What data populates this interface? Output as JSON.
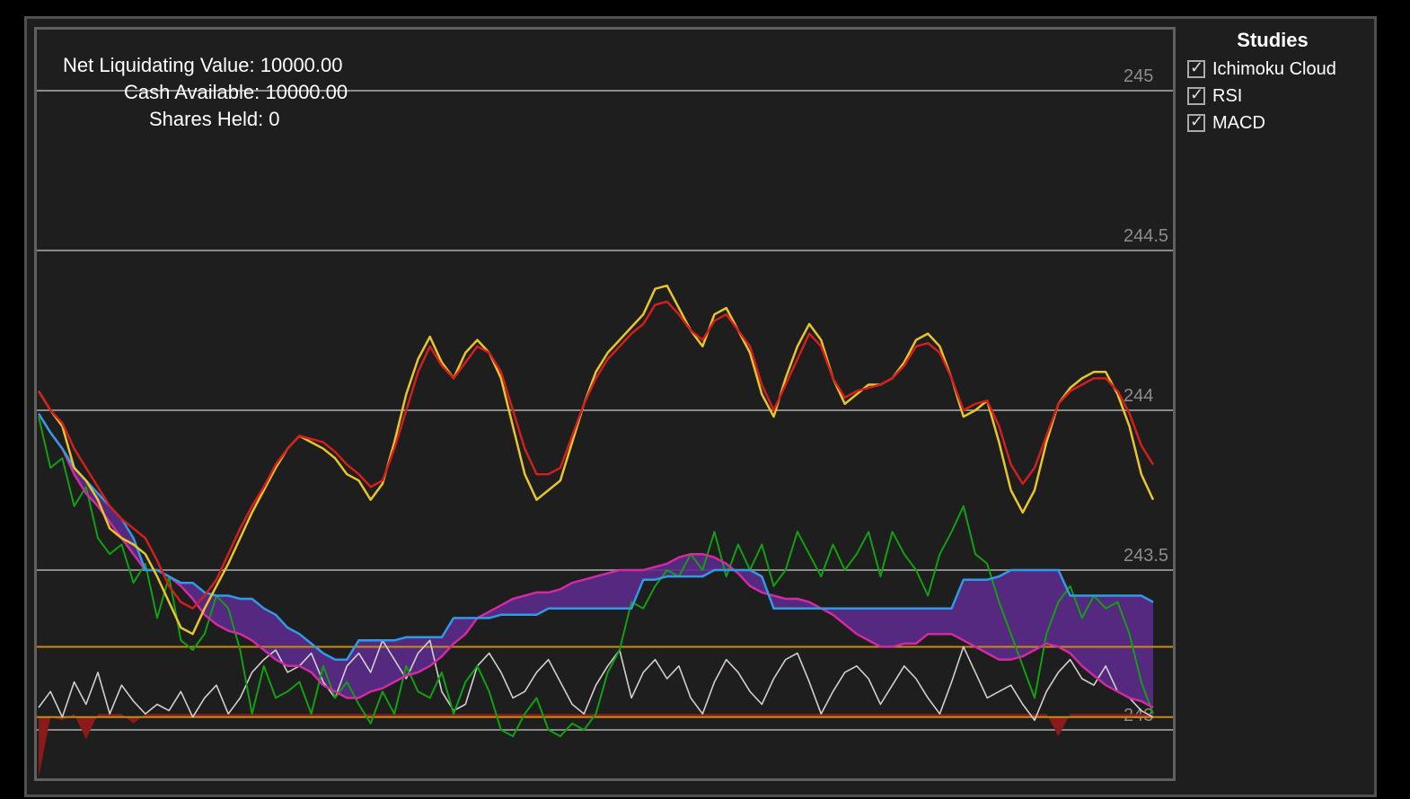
{
  "account": {
    "net_liquidating_value": "Net Liquidating Value: 10000.00",
    "cash_available": "Cash Available: 10000.00",
    "shares_held": "Shares Held: 0"
  },
  "studies": {
    "title": "Studies",
    "items": [
      {
        "label": "Ichimoku Cloud",
        "checked": true
      },
      {
        "label": "RSI",
        "checked": true
      },
      {
        "label": "MACD",
        "checked": true
      }
    ]
  },
  "colors": {
    "background": "#1e1e1e",
    "grid": "#8a8a8a",
    "price": "#e6c62a",
    "conversion": "#d21e1e",
    "base": "#2f9be6",
    "span_b": "#d22aa0",
    "cloud": "#5a2a8a",
    "lagging": "#11a011",
    "rsi": "#cfcfcf",
    "rsi_bands": "#c98a16",
    "macd_area": "#8b1a1a"
  },
  "chart_data": {
    "type": "line",
    "title": "",
    "xlabel": "",
    "ylabel": "",
    "ylim": [
      242.97,
      245.22
    ],
    "y_ticks": [
      245,
      244.5,
      244,
      243.5,
      243
    ],
    "grid": true,
    "series": [
      {
        "key": "price",
        "values": [
          244.06,
          244.0,
          243.95,
          243.82,
          243.78,
          243.72,
          243.63,
          243.6,
          243.58,
          243.55,
          243.48,
          243.4,
          243.32,
          243.3,
          243.38,
          243.45,
          243.52,
          243.6,
          243.68,
          243.75,
          243.82,
          243.88,
          243.92,
          243.9,
          243.88,
          243.85,
          243.8,
          243.78,
          243.72,
          243.77,
          243.9,
          244.05,
          244.16,
          244.23,
          244.15,
          244.1,
          244.18,
          244.22,
          244.18,
          244.1,
          243.95,
          243.8,
          243.72,
          243.75,
          243.78,
          243.9,
          244.02,
          244.12,
          244.18,
          244.22,
          244.26,
          244.3,
          244.38,
          244.39,
          244.32,
          244.25,
          244.2,
          244.3,
          244.32,
          244.25,
          244.18,
          244.05,
          243.98,
          244.1,
          244.2,
          244.27,
          244.22,
          244.1,
          244.02,
          244.05,
          244.08,
          244.08,
          244.1,
          244.15,
          244.22,
          244.24,
          244.2,
          244.1,
          243.98,
          244.0,
          244.03,
          243.9,
          243.75,
          243.68,
          243.75,
          243.9,
          244.02,
          244.07,
          244.1,
          244.12,
          244.12,
          244.05,
          243.95,
          243.8,
          243.72
        ]
      },
      {
        "key": "conversion",
        "values": [
          244.06,
          244.0,
          243.96,
          243.88,
          243.82,
          243.76,
          243.7,
          243.66,
          243.63,
          243.6,
          243.53,
          243.45,
          243.4,
          243.38,
          243.42,
          243.47,
          243.55,
          243.63,
          243.7,
          243.76,
          243.83,
          243.88,
          243.92,
          243.91,
          243.9,
          243.87,
          243.83,
          243.8,
          243.76,
          243.78,
          243.88,
          244.0,
          244.12,
          244.2,
          244.14,
          244.1,
          244.15,
          244.2,
          244.18,
          244.12,
          244.0,
          243.88,
          243.8,
          243.8,
          243.82,
          243.92,
          244.02,
          244.1,
          244.16,
          244.2,
          244.24,
          244.27,
          244.33,
          244.34,
          244.3,
          244.25,
          244.22,
          244.28,
          244.3,
          244.25,
          244.2,
          244.08,
          244.0,
          244.08,
          244.16,
          244.24,
          244.2,
          244.1,
          244.04,
          244.06,
          244.07,
          244.08,
          244.1,
          244.14,
          244.2,
          244.21,
          244.18,
          244.1,
          244.0,
          244.02,
          244.03,
          243.95,
          243.83,
          243.77,
          243.82,
          243.92,
          244.02,
          244.06,
          244.08,
          244.1,
          244.1,
          244.06,
          243.99,
          243.89,
          243.83
        ]
      },
      {
        "key": "base_line",
        "values": [
          243.99,
          243.93,
          243.88,
          243.82,
          243.78,
          243.74,
          243.7,
          243.66,
          243.6,
          243.5,
          243.5,
          243.48,
          243.46,
          243.46,
          243.43,
          243.42,
          243.42,
          243.41,
          243.41,
          243.38,
          243.36,
          243.32,
          243.3,
          243.27,
          243.24,
          243.22,
          243.22,
          243.28,
          243.28,
          243.28,
          243.28,
          243.29,
          243.29,
          243.29,
          243.29,
          243.35,
          243.35,
          243.35,
          243.35,
          243.36,
          243.36,
          243.36,
          243.36,
          243.38,
          243.38,
          243.38,
          243.38,
          243.38,
          243.38,
          243.38,
          243.38,
          243.47,
          243.47,
          243.48,
          243.48,
          243.48,
          243.48,
          243.5,
          243.5,
          243.5,
          243.5,
          243.48,
          243.38,
          243.38,
          243.38,
          243.38,
          243.38,
          243.38,
          243.38,
          243.38,
          243.38,
          243.38,
          243.38,
          243.38,
          243.38,
          243.38,
          243.38,
          243.38,
          243.47,
          243.47,
          243.47,
          243.48,
          243.5,
          243.5,
          243.5,
          243.5,
          243.5,
          243.42,
          243.42,
          243.42,
          243.42,
          243.42,
          243.42,
          243.42,
          243.4
        ]
      },
      {
        "key": "span_b",
        "values": [
          243.99,
          243.93,
          243.88,
          243.8,
          243.74,
          243.7,
          243.65,
          243.6,
          243.55,
          243.5,
          243.5,
          243.48,
          243.45,
          243.41,
          243.36,
          243.33,
          243.31,
          243.3,
          243.28,
          243.25,
          243.22,
          243.2,
          243.2,
          243.18,
          243.14,
          243.12,
          243.1,
          243.1,
          243.12,
          243.13,
          243.15,
          243.17,
          243.18,
          243.2,
          243.23,
          243.27,
          243.3,
          243.35,
          243.37,
          243.39,
          243.41,
          243.42,
          243.43,
          243.43,
          243.44,
          243.46,
          243.47,
          243.48,
          243.49,
          243.5,
          243.5,
          243.5,
          243.51,
          243.52,
          243.54,
          243.55,
          243.55,
          243.54,
          243.52,
          243.49,
          243.45,
          243.43,
          243.42,
          243.41,
          243.41,
          243.4,
          243.38,
          243.36,
          243.33,
          243.3,
          243.28,
          243.26,
          243.26,
          243.27,
          243.27,
          243.3,
          243.3,
          243.3,
          243.28,
          243.26,
          243.24,
          243.22,
          243.22,
          243.23,
          243.25,
          243.27,
          243.26,
          243.24,
          243.2,
          243.17,
          243.14,
          243.12,
          243.1,
          243.09,
          243.07
        ]
      },
      {
        "key": "lagging",
        "values": [
          243.98,
          243.82,
          243.85,
          243.7,
          243.76,
          243.6,
          243.55,
          243.58,
          243.46,
          243.52,
          243.35,
          243.48,
          243.28,
          243.25,
          243.3,
          243.42,
          243.38,
          243.25,
          243.05,
          243.2,
          243.1,
          243.12,
          243.15,
          243.05,
          243.2,
          243.1,
          243.15,
          243.08,
          243.02,
          243.12,
          243.05,
          243.2,
          243.12,
          243.1,
          243.18,
          243.05,
          243.15,
          243.2,
          243.12,
          243.0,
          242.98,
          243.05,
          243.1,
          243.0,
          242.98,
          243.02,
          243.0,
          243.05,
          243.18,
          243.25,
          243.4,
          243.38,
          243.45,
          243.5,
          243.48,
          243.55,
          243.5,
          243.62,
          243.48,
          243.58,
          243.5,
          243.58,
          243.45,
          243.5,
          243.62,
          243.55,
          243.48,
          243.58,
          243.5,
          243.55,
          243.62,
          243.48,
          243.62,
          243.55,
          243.5,
          243.42,
          243.55,
          243.62,
          243.7,
          243.55,
          243.52,
          243.4,
          243.3,
          243.2,
          243.1,
          243.3,
          243.4,
          243.45,
          243.35,
          243.42,
          243.38,
          243.4,
          243.3,
          243.15,
          243.05
        ]
      },
      {
        "key": "rsi",
        "values": [
          243.07,
          243.12,
          243.04,
          243.15,
          243.08,
          243.18,
          243.05,
          243.14,
          243.09,
          243.05,
          243.08,
          243.06,
          243.12,
          243.04,
          243.1,
          243.14,
          243.05,
          243.1,
          243.18,
          243.22,
          243.25,
          243.18,
          243.2,
          243.24,
          243.15,
          243.1,
          243.2,
          243.24,
          243.18,
          243.28,
          243.22,
          243.16,
          243.24,
          243.28,
          243.12,
          243.06,
          243.08,
          243.2,
          243.24,
          243.18,
          243.1,
          243.12,
          243.18,
          243.22,
          243.15,
          243.08,
          243.05,
          243.14,
          243.2,
          243.25,
          243.1,
          243.18,
          243.22,
          243.16,
          243.2,
          243.1,
          243.05,
          243.15,
          243.22,
          243.18,
          243.12,
          243.08,
          243.16,
          243.22,
          243.24,
          243.15,
          243.05,
          243.12,
          243.18,
          243.2,
          243.16,
          243.08,
          243.14,
          243.2,
          243.16,
          243.1,
          243.05,
          243.15,
          243.26,
          243.18,
          243.1,
          243.12,
          243.14,
          243.08,
          243.03,
          243.12,
          243.18,
          243.22,
          243.16,
          243.14,
          243.2,
          243.12,
          243.1,
          243.06,
          243.04
        ]
      },
      {
        "key": "macd",
        "values": [
          242.85,
          243.04,
          243.03,
          243.05,
          242.97,
          243.05,
          243.05,
          243.05,
          243.02,
          243.05,
          243.05,
          243.05,
          243.05,
          243.05,
          243.05,
          243.05,
          243.05,
          243.05,
          243.05,
          243.05,
          243.05,
          243.05,
          243.05,
          243.05,
          243.05,
          243.05,
          243.05,
          243.05,
          243.05,
          243.05,
          243.05,
          243.05,
          243.05,
          243.05,
          243.05,
          243.05,
          243.05,
          243.05,
          243.05,
          243.05,
          243.05,
          243.05,
          243.05,
          243.05,
          243.05,
          243.05,
          243.05,
          243.05,
          243.05,
          243.05,
          243.05,
          243.05,
          243.05,
          243.05,
          243.05,
          243.05,
          243.05,
          243.05,
          243.05,
          243.05,
          243.05,
          243.05,
          243.05,
          243.05,
          243.05,
          243.05,
          243.05,
          243.05,
          243.05,
          243.05,
          243.05,
          243.05,
          243.05,
          243.05,
          243.05,
          243.05,
          243.05,
          243.05,
          243.05,
          243.05,
          243.05,
          243.05,
          243.05,
          243.05,
          243.05,
          243.05,
          242.98,
          243.05,
          243.05,
          243.05,
          243.05,
          243.05,
          243.05,
          243.05,
          243.05
        ]
      }
    ],
    "hlines": [
      243.26,
      243.04
    ]
  }
}
